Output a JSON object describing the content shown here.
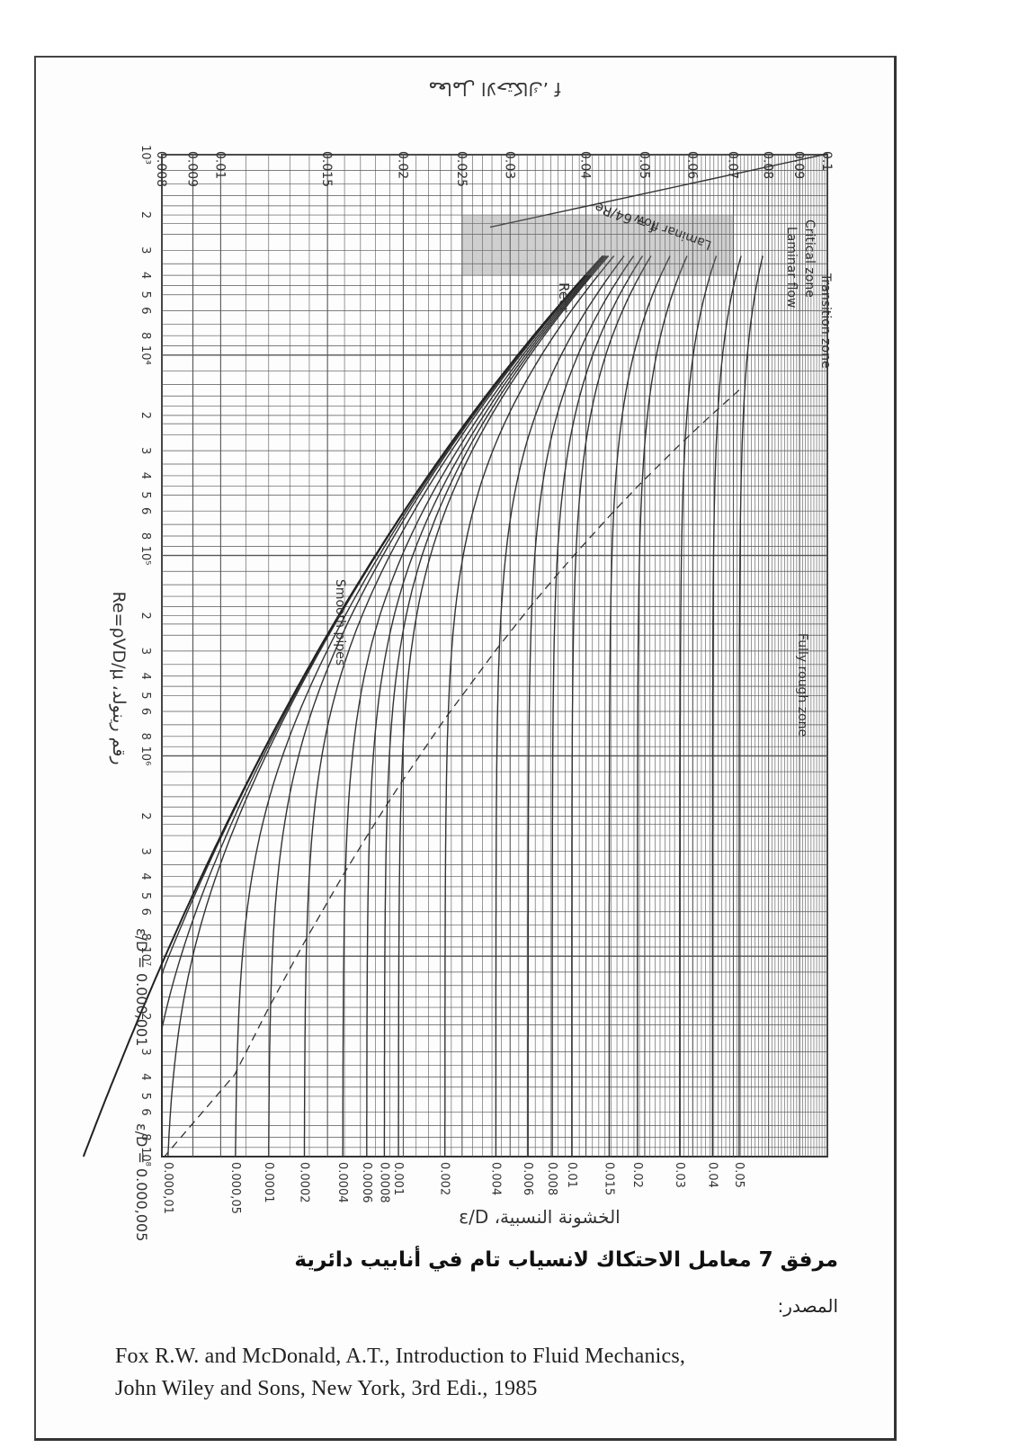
{
  "chart_data": {
    "type": "line",
    "title": "",
    "xlabel": "رقم رينولد، Re=ρVD/μ",
    "ylabel": "معامل الاحتكاك، f",
    "secondary_ylabel": "الخشونة النسبية، ε/D",
    "x_scale": "log",
    "y_scale": "log",
    "xlim": [
      1000,
      100000000
    ],
    "ylim": [
      0.008,
      0.1
    ],
    "grid": true,
    "x_tick_labels": [
      "10³",
      "2",
      "3",
      "4",
      "5",
      "6",
      "8",
      "10⁴",
      "2",
      "3",
      "4",
      "5",
      "6",
      "8",
      "10⁵",
      "2",
      "3",
      "4",
      "5",
      "6",
      "8",
      "10⁶",
      "2",
      "3",
      "4",
      "5",
      "6",
      "8",
      "10⁷",
      "2",
      "3",
      "4",
      "5",
      "6",
      "8",
      "10⁸"
    ],
    "y_tick_labels": [
      "0.008",
      "0.009",
      "0.01",
      "0.015",
      "0.02",
      "0.025",
      "0.03",
      "0.04",
      "0.05",
      "0.06",
      "0.07",
      "0.08",
      "0.09",
      "0.1"
    ],
    "roughness_tick_labels": [
      "0.000,01",
      "0.000,05",
      "0.0001",
      "0.0002",
      "0.0004",
      "0.0006",
      "0.0008",
      "0.001",
      "0.002",
      "0.004",
      "0.006",
      "0.008",
      "0.01",
      "0.015",
      "0.02",
      "0.03",
      "0.04",
      "0.05"
    ],
    "roughness_curves": [
      0.05,
      0.04,
      0.03,
      0.02,
      0.015,
      0.01,
      0.008,
      0.006,
      0.004,
      0.002,
      0.001,
      0.0008,
      0.0006,
      0.0004,
      0.0002,
      0.0001,
      5e-05,
      1e-05,
      5e-06,
      1e-06
    ],
    "laminar_line": {
      "x": [
        600,
        2300
      ],
      "y": [
        0.107,
        0.0278
      ]
    },
    "annotations": {
      "laminar_flow": "Laminar flow",
      "laminar_eq": "f = 64/Re",
      "re_cr": "Recr",
      "critical_zone": "Critical zone",
      "laminar_flow_2": "Laminar flow",
      "transition_zone": "Transition zone",
      "fully_rough": "Fully rough zone",
      "smooth_pipes": "Smooth pipes",
      "eps_d_min": "ε/D = 0.000,001",
      "eps_d_small": "ε/D = 0.000,005"
    }
  },
  "caption": "مرفق 7 معامل الاحتكاك لانسياب تام في أنابيب دائرية",
  "source_label": "المصدر:",
  "reference": [
    "Fox R.W.  and  McDonald,   A.T., Introduction to Fluid Mechanics,",
    "John Wiley and Sons, New York, 3rd Edi., 1985"
  ]
}
